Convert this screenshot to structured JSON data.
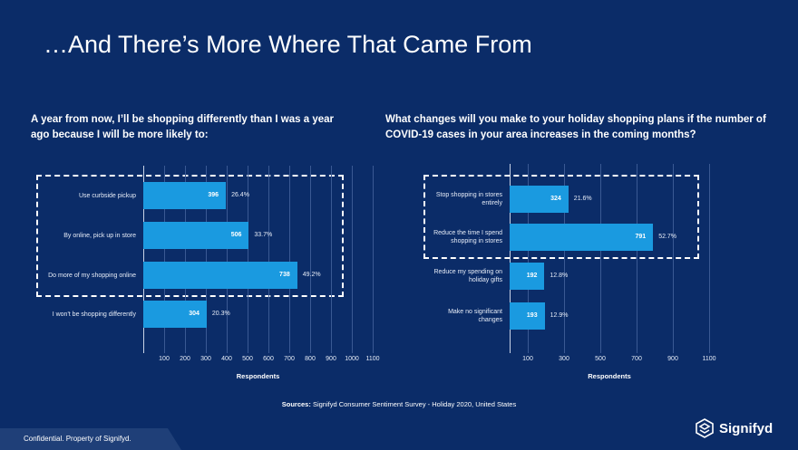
{
  "slide": {
    "title": "…And There’s More Where That Came From",
    "sources_label": "Sources:",
    "sources": "Signifyd Consumer Sentiment Survey - Holiday 2020, United States",
    "footer": "Confidential. Property of Signifyd.",
    "logo": "Signifyd"
  },
  "chart_data": [
    {
      "type": "hbar",
      "title": "A year from now, I’ll be shopping differently than I was a year ago because I will be more likely to:",
      "categories": [
        "Use curbside pickup",
        "By online, pick up in store",
        "Do more of my shopping online",
        "I won't be shopping differently"
      ],
      "values": [
        396,
        506,
        738,
        304
      ],
      "share_labels": [
        "26.4%",
        "33.7%",
        "49.2%",
        "20.3%"
      ],
      "color": "#1a9ae0",
      "xlabel": "Respondents",
      "xlim": [
        0,
        1100
      ],
      "xticks": [
        100,
        200,
        300,
        400,
        500,
        600,
        700,
        800,
        900,
        1000,
        1100
      ],
      "grid": true
    },
    {
      "type": "hbar",
      "title": "What changes will you make to your holiday shopping plans if the number of COVID-19 cases in your area increases in the coming months?",
      "categories": [
        "Stop shopping in stores entirely",
        "Reduce the time I spend shopping in stores",
        "Reduce my spending on holiday gifts",
        "Make no significant changes"
      ],
      "values": [
        324,
        791,
        192,
        193
      ],
      "share_labels": [
        "21.6%",
        "52.7%",
        "12.8%",
        "12.9%"
      ],
      "color": "#1a9ae0",
      "xlabel": "Respondents",
      "xlim": [
        0,
        1100
      ],
      "xticks": [
        100,
        300,
        500,
        700,
        900,
        1100
      ],
      "grid": true
    }
  ]
}
